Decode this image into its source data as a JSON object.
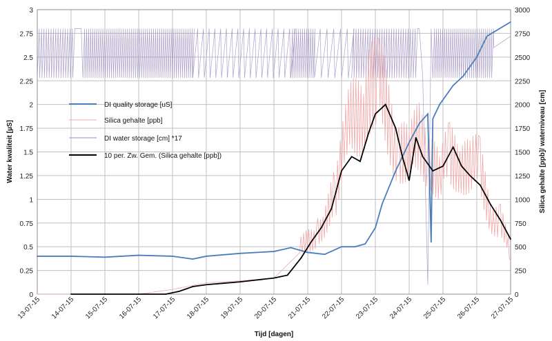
{
  "chart_data": {
    "type": "line",
    "xlabel": "Tijd [dagen]",
    "ylabel_left": "Water kwaliteit [µS]",
    "ylabel_right": "Silica gehalte [ppb]/ waterniveau [cm]",
    "ylim_left": [
      0,
      3
    ],
    "ylim_right": [
      0,
      3000
    ],
    "yticks_left": [
      "0",
      "0.25",
      "0.5",
      "0.75",
      "1",
      "1.25",
      "1.5",
      "1.75",
      "2",
      "2.25",
      "2.5",
      "2.75",
      "3"
    ],
    "yticks_right": [
      "0",
      "250",
      "500",
      "750",
      "1000",
      "1250",
      "1500",
      "1750",
      "2000",
      "2250",
      "2500",
      "2750",
      "3000"
    ],
    "x_categories": [
      "13-07-15",
      "14-07-15",
      "15-07-15",
      "16-07-15",
      "17-07-15",
      "18-07-15",
      "19-07-15",
      "20-07-15",
      "21-07-15",
      "22-07-15",
      "23-07-15",
      "24-07-15",
      "25-07-15",
      "26-07-15",
      "27-07-15"
    ],
    "grid": true,
    "legend_position": "left, inside plot",
    "series": [
      {
        "name": "DI quality storage [uS]",
        "axis": "left",
        "color": "#4a7ebb",
        "x": [
          0,
          1,
          2,
          3,
          4,
          4.6,
          5,
          6,
          7,
          7.5,
          8,
          8.5,
          9,
          9.4,
          9.7,
          10,
          10.2,
          10.6,
          11.0,
          11.3,
          11.55,
          11.65,
          11.7,
          11.9,
          12.3,
          12.6,
          13,
          13.3,
          14
        ],
        "values": [
          0.4,
          0.4,
          0.39,
          0.41,
          0.4,
          0.37,
          0.4,
          0.43,
          0.45,
          0.49,
          0.44,
          0.42,
          0.5,
          0.5,
          0.53,
          0.7,
          0.95,
          1.3,
          1.6,
          1.8,
          1.9,
          0.55,
          1.85,
          2.0,
          2.2,
          2.3,
          2.5,
          2.72,
          2.87
        ]
      },
      {
        "name": "Silica gehalte [ppb]",
        "axis": "right",
        "color": "#f2a9a9",
        "x": [
          0,
          1,
          2,
          3,
          4,
          5,
          6,
          7,
          7.8,
          8.3,
          8.8,
          9.2,
          9.5,
          9.8,
          10.1,
          10.4,
          10.7,
          11.0,
          11.3,
          11.6,
          11.9,
          12.2,
          12.5,
          12.8,
          13.1,
          13.4,
          13.7,
          14
        ],
        "values": [
          0,
          0,
          0,
          0,
          50,
          120,
          140,
          170,
          450,
          700,
          1000,
          1600,
          1900,
          2250,
          2000,
          1800,
          1600,
          1300,
          1600,
          1550,
          1100,
          1400,
          1500,
          1250,
          1250,
          900,
          750,
          350
        ]
      },
      {
        "name": "DI  water storage [cm] *17",
        "axis": "left",
        "color": "#9e8fbf",
        "band_min": 2.28,
        "band_max": 2.8
      },
      {
        "name": "10 per. Zw. Gem. (Silica gehalte [ppb])",
        "axis": "right",
        "color": "#000000",
        "x": [
          1,
          2,
          3,
          3.8,
          4.2,
          4.6,
          5,
          5.5,
          6,
          6.5,
          7,
          7.4,
          7.8,
          8.1,
          8.4,
          8.7,
          9,
          9.3,
          9.55,
          9.8,
          10.0,
          10.3,
          10.6,
          10.8,
          11.0,
          11.2,
          11.4,
          11.7,
          12.0,
          12.3,
          12.55,
          12.8,
          13.1,
          13.4,
          13.7,
          14
        ],
        "values": [
          0,
          0,
          0,
          0,
          30,
          80,
          100,
          115,
          130,
          150,
          170,
          200,
          380,
          550,
          700,
          900,
          1300,
          1450,
          1400,
          1700,
          1900,
          2000,
          1750,
          1450,
          1200,
          1650,
          1450,
          1300,
          1350,
          1550,
          1350,
          1250,
          1150,
          950,
          780,
          580
        ]
      }
    ]
  }
}
